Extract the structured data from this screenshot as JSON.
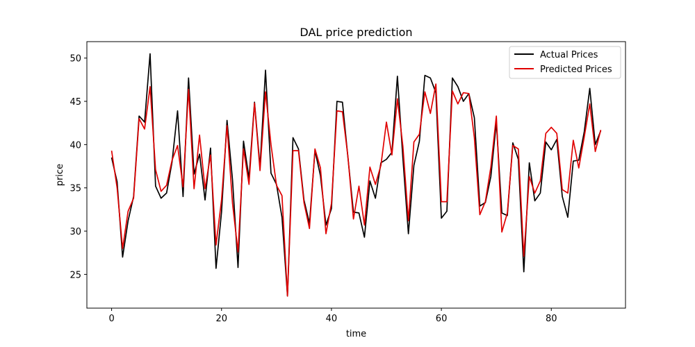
{
  "chart_data": {
    "type": "line",
    "title": "DAL price prediction",
    "xlabel": "time",
    "ylabel": "price",
    "xlim": [
      -4.5,
      93.5
    ],
    "ylim": [
      21.1,
      51.9
    ],
    "xticks": [
      0,
      20,
      40,
      60,
      80
    ],
    "yticks": [
      25,
      30,
      35,
      40,
      45,
      50
    ],
    "grid": false,
    "legend_position": "top-right",
    "x": [
      0,
      1,
      2,
      3,
      4,
      5,
      6,
      7,
      8,
      9,
      10,
      11,
      12,
      13,
      14,
      15,
      16,
      17,
      18,
      19,
      20,
      21,
      22,
      23,
      24,
      25,
      26,
      27,
      28,
      29,
      30,
      31,
      32,
      33,
      34,
      35,
      36,
      37,
      38,
      39,
      40,
      41,
      42,
      43,
      44,
      45,
      46,
      47,
      48,
      49,
      50,
      51,
      52,
      53,
      54,
      55,
      56,
      57,
      58,
      59,
      60,
      61,
      62,
      63,
      64,
      65,
      66,
      67,
      68,
      69,
      70,
      71,
      72,
      73,
      74,
      75,
      76,
      77,
      78,
      79,
      80,
      81,
      82,
      83,
      84,
      85,
      86,
      87,
      88,
      89
    ],
    "series": [
      {
        "name": "Actual Prices",
        "color": "#000000",
        "values": [
          38.5,
          35.7,
          27.0,
          31.2,
          34.0,
          43.3,
          42.6,
          50.5,
          35.2,
          33.8,
          34.4,
          38.0,
          43.9,
          34.0,
          47.7,
          36.6,
          38.9,
          33.6,
          39.6,
          25.7,
          32.2,
          42.8,
          35.9,
          25.8,
          40.4,
          36.1,
          44.9,
          37.4,
          48.6,
          36.7,
          35.4,
          31.6,
          22.5,
          40.8,
          39.5,
          33.6,
          30.9,
          39.3,
          36.4,
          30.7,
          32.6,
          45.0,
          44.9,
          38.5,
          32.2,
          32.1,
          29.3,
          35.8,
          33.8,
          37.9,
          38.3,
          39.1,
          47.9,
          38.4,
          29.7,
          37.6,
          40.4,
          48.0,
          47.7,
          46.0,
          31.5,
          32.3,
          47.7,
          46.7,
          45.0,
          45.9,
          43.1,
          32.9,
          33.3,
          36.3,
          42.6,
          32.1,
          31.8,
          40.2,
          38.3,
          25.3,
          37.9,
          33.5,
          34.4,
          40.3,
          39.4,
          40.6,
          34.0,
          31.6,
          38.1,
          38.2,
          41.5,
          46.5,
          40.0,
          41.6
        ]
      },
      {
        "name": "Predicted Prices",
        "color": "#e00000",
        "values": [
          39.3,
          35.0,
          28.0,
          32.3,
          33.8,
          43.0,
          41.8,
          46.7,
          37.1,
          34.6,
          35.3,
          38.2,
          39.9,
          35.1,
          46.4,
          34.9,
          41.1,
          34.9,
          38.8,
          28.4,
          33.6,
          42.2,
          33.2,
          27.6,
          39.5,
          35.4,
          44.8,
          37.0,
          46.1,
          40.0,
          35.3,
          34.1,
          22.5,
          39.3,
          39.3,
          33.3,
          30.3,
          39.5,
          37.3,
          29.7,
          33.2,
          43.9,
          43.8,
          38.6,
          31.4,
          35.2,
          30.7,
          37.4,
          35.4,
          37.6,
          42.6,
          38.8,
          45.3,
          39.8,
          31.2,
          40.3,
          41.2,
          46.1,
          43.6,
          47.0,
          33.4,
          33.4,
          46.2,
          44.7,
          46.0,
          45.9,
          40.8,
          31.9,
          33.4,
          37.4,
          43.3,
          29.9,
          32.1,
          39.9,
          39.5,
          27.1,
          36.3,
          34.4,
          35.8,
          41.3,
          42.0,
          41.3,
          34.8,
          34.4,
          40.5,
          37.3,
          40.9,
          44.7,
          39.2,
          41.7
        ]
      }
    ]
  }
}
